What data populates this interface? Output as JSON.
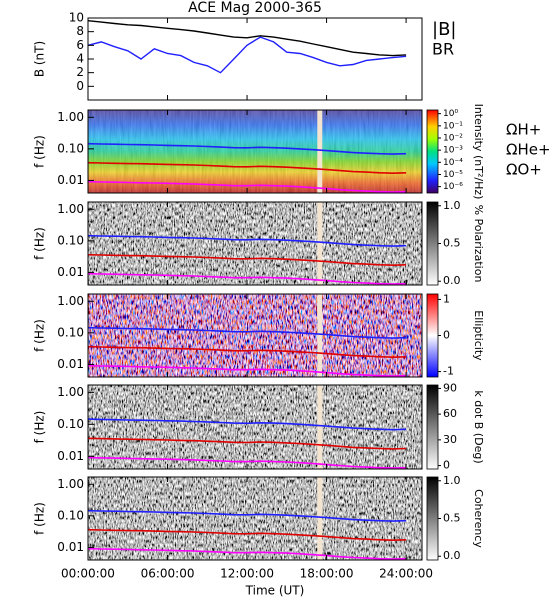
{
  "chart_data": [
    {
      "type": "line",
      "title": "ACE Mag 2000-365",
      "ylabel": "B (nT)",
      "x": [
        0,
        1,
        2,
        3,
        4,
        5,
        6,
        7,
        8,
        9,
        10,
        11,
        12,
        13,
        14,
        15,
        16,
        17,
        18,
        19,
        20,
        21,
        22,
        23,
        24
      ],
      "xlim": [
        0,
        25.2
      ],
      "ylim": [
        -2,
        10
      ],
      "yticks": [
        0,
        2,
        4,
        6,
        8,
        10
      ],
      "series": [
        {
          "name": "|B|",
          "color": "#000000",
          "values": [
            9.6,
            9.4,
            9.2,
            9.0,
            8.9,
            8.7,
            8.5,
            8.3,
            8.1,
            7.8,
            7.5,
            7.2,
            7.1,
            7.4,
            7.2,
            6.9,
            6.6,
            6.2,
            5.8,
            5.4,
            5.0,
            4.8,
            4.6,
            4.5,
            4.6
          ]
        },
        {
          "name": "BR",
          "color": "#2020ff",
          "values": [
            6.0,
            6.5,
            5.8,
            5.2,
            4.0,
            5.5,
            4.8,
            4.5,
            3.5,
            3.0,
            2.0,
            4.0,
            6.0,
            7.2,
            6.5,
            5.0,
            4.8,
            4.2,
            3.5,
            3.0,
            3.2,
            3.8,
            4.0,
            4.2,
            4.4
          ]
        }
      ]
    },
    {
      "type": "spectrogram",
      "ylabel": "f (Hz)",
      "ylim": [
        0.004,
        1.7
      ],
      "log_y": true,
      "colormap": "rainbow",
      "yticks": [
        {
          "value": 1,
          "label": "1.00"
        },
        {
          "value": 0.1,
          "label": "0.10"
        },
        {
          "value": 0.01,
          "label": "0.01"
        }
      ],
      "colorbar": {
        "label": "Intensity (nT²/Hz)",
        "log": true,
        "lim": [
          3e-07,
          2
        ],
        "ticks": [
          {
            "value": 1,
            "label": "10⁰"
          },
          {
            "value": 0.1,
            "label": "10⁻¹"
          },
          {
            "value": 0.01,
            "label": "10⁻²"
          },
          {
            "value": 0.001,
            "label": "10⁻³"
          },
          {
            "value": 0.0001,
            "label": "10⁻⁴"
          },
          {
            "value": 1e-05,
            "label": "10⁻⁵"
          },
          {
            "value": 1e-06,
            "label": "10⁻⁶"
          }
        ]
      },
      "series": [
        {
          "name": "ΩH+",
          "color": "#2020ff",
          "values": [
            0.146,
            0.143,
            0.14,
            0.137,
            0.135,
            0.132,
            0.129,
            0.126,
            0.123,
            0.119,
            0.114,
            0.109,
            0.108,
            0.112,
            0.109,
            0.105,
            0.1,
            0.094,
            0.088,
            0.082,
            0.076,
            0.073,
            0.07,
            0.068,
            0.07
          ]
        },
        {
          "name": "ΩHe+",
          "color": "#e00000",
          "values": [
            0.0365,
            0.0357,
            0.035,
            0.0342,
            0.0338,
            0.033,
            0.0323,
            0.0315,
            0.0308,
            0.0297,
            0.0285,
            0.0273,
            0.027,
            0.028,
            0.0273,
            0.0263,
            0.025,
            0.0235,
            0.022,
            0.0205,
            0.019,
            0.0183,
            0.0175,
            0.017,
            0.0175
          ]
        },
        {
          "name": "ΩO+",
          "color": "#ff00ff",
          "values": [
            0.0091,
            0.0089,
            0.0088,
            0.0086,
            0.0084,
            0.0083,
            0.0081,
            0.0079,
            0.0077,
            0.0074,
            0.0071,
            0.0068,
            0.0068,
            0.007,
            0.0068,
            0.0066,
            0.0063,
            0.0059,
            0.0055,
            0.0051,
            0.0048,
            0.0046,
            0.0044,
            0.0043,
            0.0044
          ]
        }
      ]
    },
    {
      "type": "spectrogram",
      "ylabel": "f (Hz)",
      "ylim": [
        0.004,
        1.7
      ],
      "log_y": true,
      "colormap": "gray",
      "yticks": [
        {
          "value": 1,
          "label": "1.00"
        },
        {
          "value": 0.1,
          "label": "0.10"
        },
        {
          "value": 0.01,
          "label": "0.01"
        }
      ],
      "colorbar": {
        "label": "% Polarization",
        "lim": [
          -0.05,
          1.05
        ],
        "ticks": [
          {
            "value": 0,
            "label": "0.0"
          },
          0.5,
          {
            "value": 1,
            "label": "1.0"
          }
        ]
      }
    },
    {
      "type": "spectrogram",
      "ylabel": "f (Hz)",
      "ylim": [
        0.004,
        1.7
      ],
      "log_y": true,
      "colormap": "bwr",
      "yticks": [
        {
          "value": 1,
          "label": "1.00"
        },
        {
          "value": 0.1,
          "label": "0.10"
        },
        {
          "value": 0.01,
          "label": "0.01"
        }
      ],
      "colorbar": {
        "label": "Ellipticity",
        "lim": [
          -1.15,
          1.15
        ],
        "ticks": [
          -1,
          0,
          1
        ]
      }
    },
    {
      "type": "spectrogram",
      "ylabel": "f (Hz)",
      "ylim": [
        0.004,
        1.7
      ],
      "log_y": true,
      "colormap": "gray",
      "yticks": [
        {
          "value": 1,
          "label": "1.00"
        },
        {
          "value": 0.1,
          "label": "0.10"
        },
        {
          "value": 0.01,
          "label": "0.01"
        }
      ],
      "colorbar": {
        "label": "k dot B (Deg)",
        "lim": [
          -4,
          94
        ],
        "ticks": [
          0,
          30,
          60,
          90
        ]
      }
    },
    {
      "type": "spectrogram",
      "ylabel": "f (Hz)",
      "ylim": [
        0.004,
        1.7
      ],
      "log_y": true,
      "colormap": "gray",
      "yticks": [
        {
          "value": 1,
          "label": "1.00"
        },
        {
          "value": 0.1,
          "label": "0.10"
        },
        {
          "value": 0.01,
          "label": "0.01"
        }
      ],
      "colorbar": {
        "label": "Coherency",
        "lim": [
          -0.05,
          1.05
        ],
        "ticks": [
          {
            "value": 0,
            "label": "0.0"
          },
          0.5,
          {
            "value": 1,
            "label": "1.0"
          }
        ]
      },
      "xlabel": "Time (UT)",
      "xticks": [
        {
          "value": 0,
          "label": "00:00:00"
        },
        {
          "value": 6,
          "label": "06:00:00"
        },
        {
          "value": 12,
          "label": "12:00:00"
        },
        {
          "value": 18,
          "label": "18:00:00"
        },
        {
          "value": 24,
          "label": "24:00:00"
        }
      ]
    }
  ]
}
